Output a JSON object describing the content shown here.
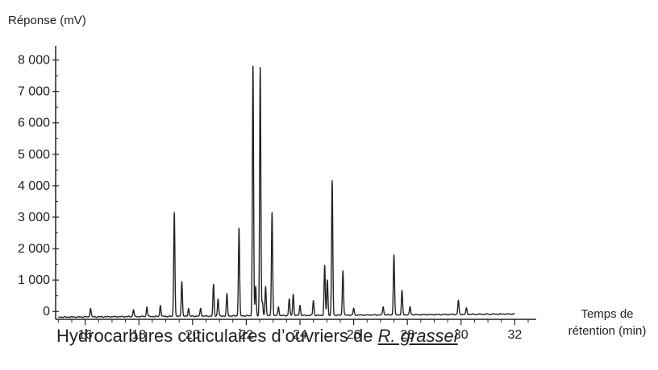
{
  "chart_data": {
    "type": "line",
    "ylabel": "Réponse (mV)",
    "xlabel_line1": "Temps de",
    "xlabel_line2": "rétention (min)",
    "caption_prefix": "Hydrocarbures cuticulaires d’ouvriers de ",
    "caption_species": "R. grassei",
    "xlim": [
      14.9,
      32.8
    ],
    "ylim": [
      -250,
      8450
    ],
    "grid": false,
    "x_ticks": [
      16,
      18,
      20,
      22,
      24,
      26,
      28,
      30,
      32
    ],
    "x_tick_labels": [
      "16",
      "18",
      "20",
      "22",
      "24",
      "26",
      "28",
      "30",
      "32"
    ],
    "y_ticks": [
      0,
      1000,
      2000,
      3000,
      4000,
      5000,
      6000,
      7000,
      8000
    ],
    "y_tick_labels": [
      "0",
      "1 000",
      "2 000",
      "3 000",
      "4 000",
      "5 000",
      "6 000",
      "7 000",
      "8 000"
    ],
    "line_color": "#222222",
    "series": [
      {
        "baseline": {
          "start": [
            15.0,
            -180
          ],
          "end": [
            32.0,
            -80
          ]
        },
        "peaks": [
          {
            "x": 16.2,
            "y": 100
          },
          {
            "x": 17.8,
            "y": 60
          },
          {
            "x": 18.3,
            "y": 150
          },
          {
            "x": 18.8,
            "y": 200
          },
          {
            "x": 19.32,
            "y": 3150
          },
          {
            "x": 19.6,
            "y": 950
          },
          {
            "x": 19.85,
            "y": 100
          },
          {
            "x": 20.3,
            "y": 100
          },
          {
            "x": 20.78,
            "y": 850
          },
          {
            "x": 20.95,
            "y": 400
          },
          {
            "x": 21.28,
            "y": 550
          },
          {
            "x": 21.73,
            "y": 2650
          },
          {
            "x": 22.25,
            "y": 7800
          },
          {
            "x": 22.35,
            "y": 800
          },
          {
            "x": 22.52,
            "y": 7750
          },
          {
            "x": 22.6,
            "y": 300
          },
          {
            "x": 22.72,
            "y": 800
          },
          {
            "x": 22.96,
            "y": 3150
          },
          {
            "x": 23.2,
            "y": 150
          },
          {
            "x": 23.6,
            "y": 400
          },
          {
            "x": 23.75,
            "y": 550
          },
          {
            "x": 24.0,
            "y": 200
          },
          {
            "x": 24.5,
            "y": 350
          },
          {
            "x": 24.92,
            "y": 1450
          },
          {
            "x": 25.02,
            "y": 1000
          },
          {
            "x": 25.2,
            "y": 4150
          },
          {
            "x": 25.6,
            "y": 1300
          },
          {
            "x": 26.0,
            "y": 100
          },
          {
            "x": 27.1,
            "y": 150
          },
          {
            "x": 27.5,
            "y": 1800
          },
          {
            "x": 27.8,
            "y": 650
          },
          {
            "x": 28.1,
            "y": 150
          },
          {
            "x": 29.9,
            "y": 350
          },
          {
            "x": 30.2,
            "y": 100
          }
        ]
      }
    ]
  }
}
